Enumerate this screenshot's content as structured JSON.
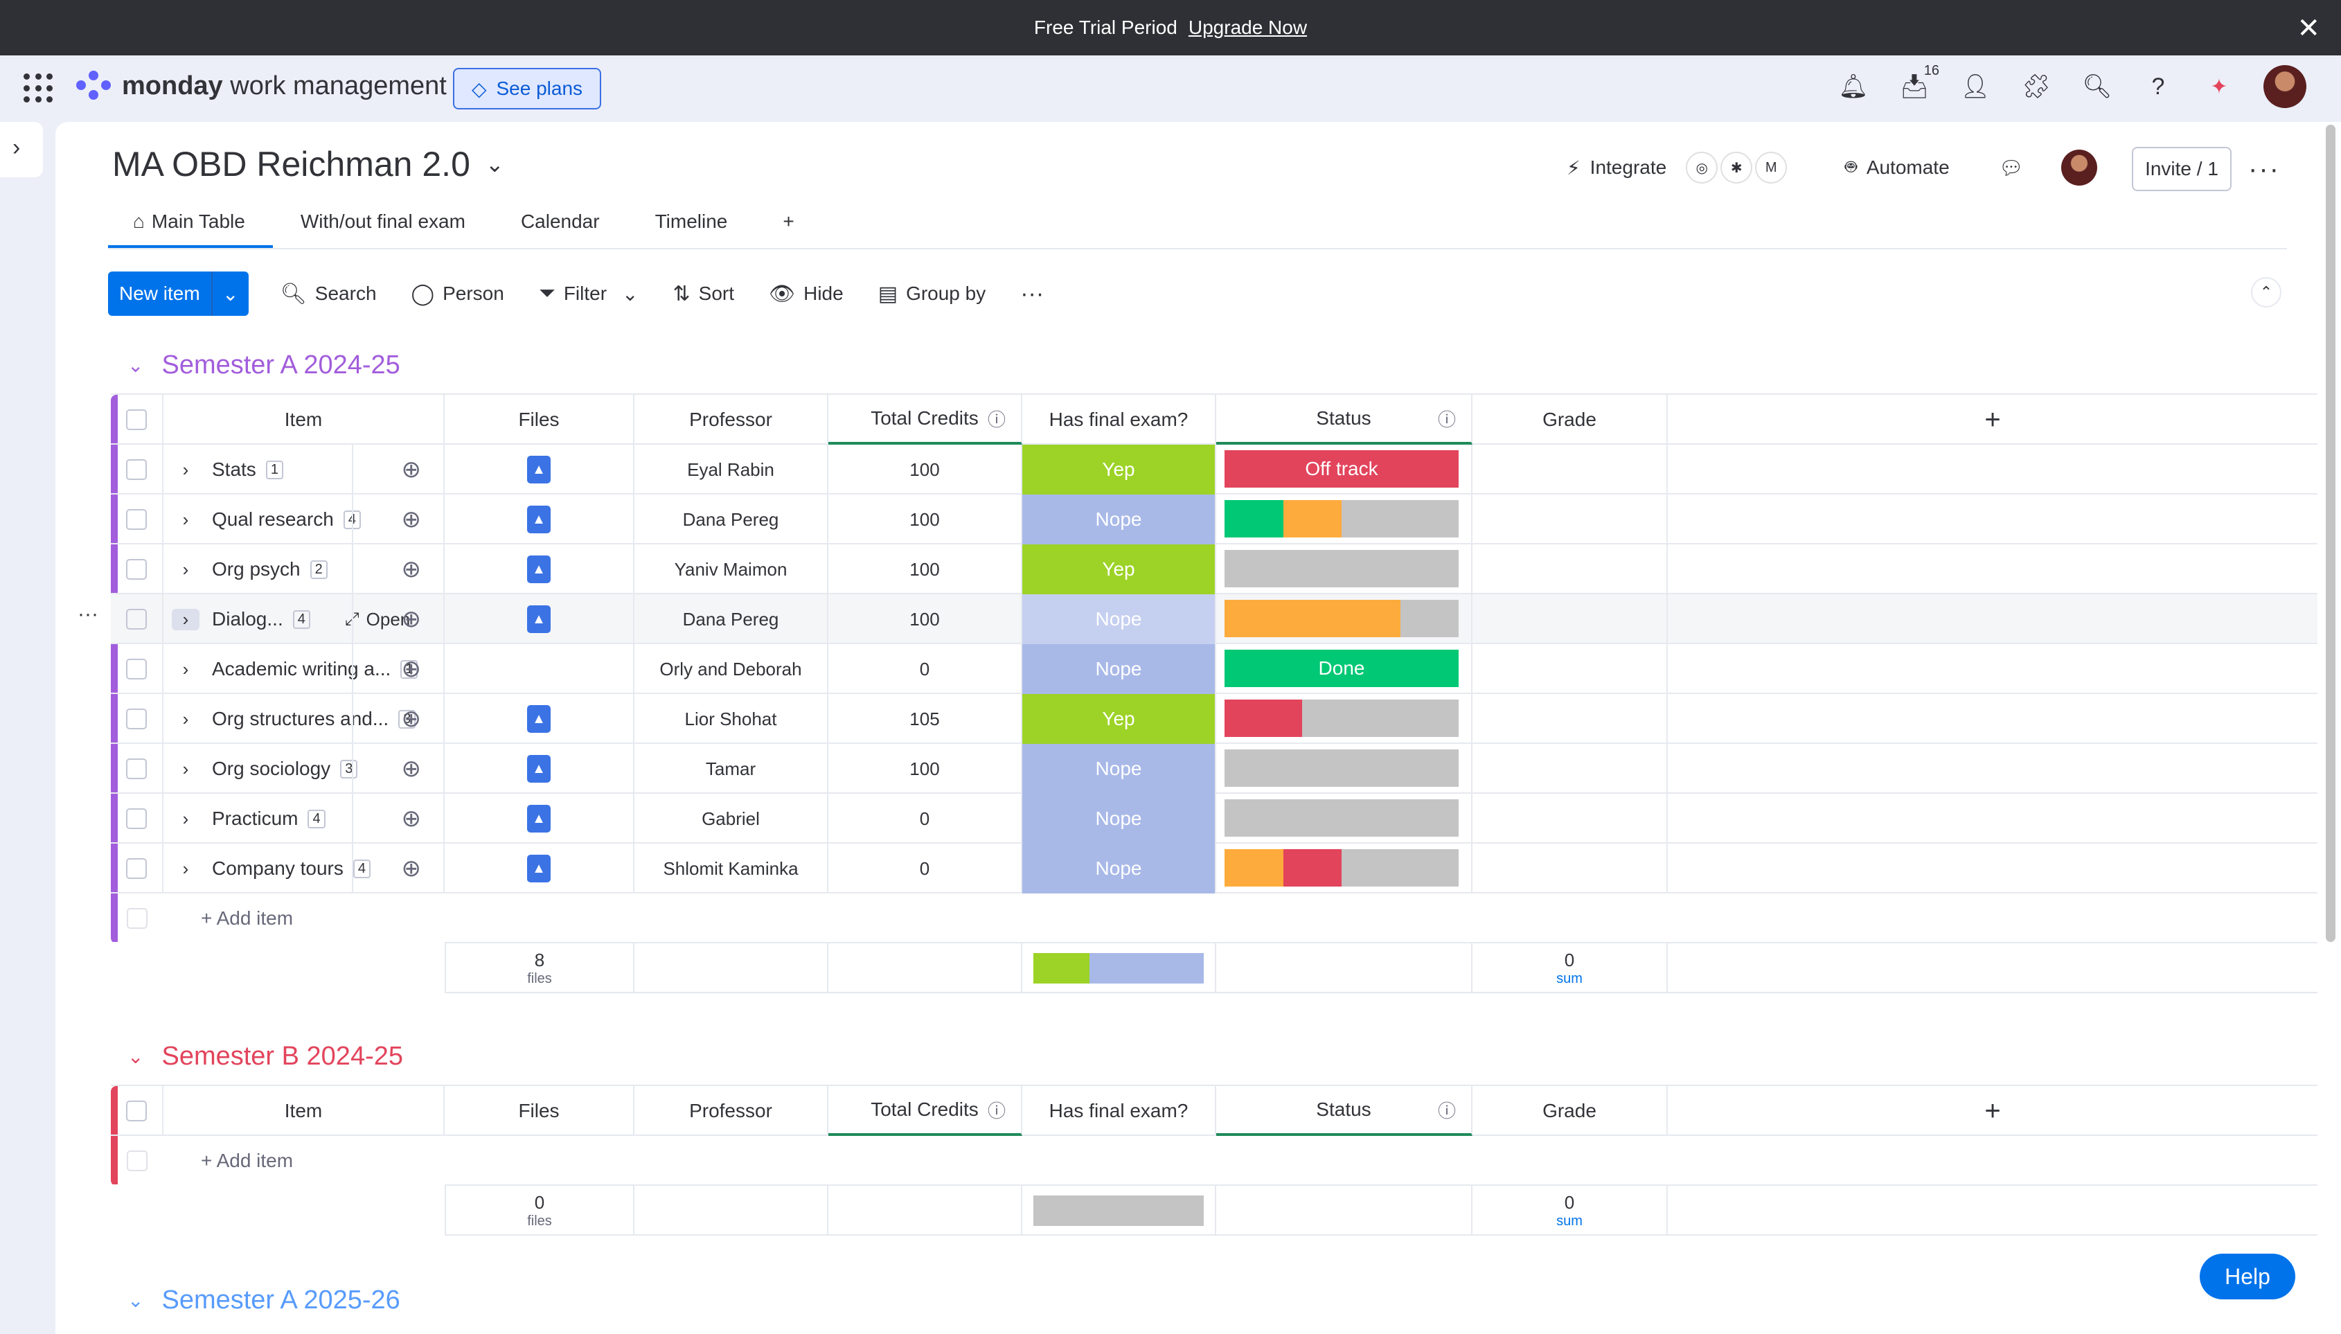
{
  "trial": {
    "text": "Free Trial Period",
    "link": "Upgrade Now"
  },
  "topnav": {
    "brand_bold": "monday",
    "brand_rest": "work management",
    "see_plans": "See plans",
    "inbox_count": "16"
  },
  "board": {
    "title": "MA OBD Reichman 2.0",
    "integrate": "Integrate",
    "automate": "Automate",
    "invite": "Invite / 1",
    "tabs": [
      "Main Table",
      "With/out final exam",
      "Calendar",
      "Timeline",
      "+"
    ]
  },
  "toolbar": {
    "new_item": "New item",
    "search": "Search",
    "person": "Person",
    "filter": "Filter",
    "sort": "Sort",
    "hide": "Hide",
    "group_by": "Group by"
  },
  "columns": [
    "Item",
    "Files",
    "Professor",
    "Total Credits",
    "Has final exam?",
    "Status",
    "Grade"
  ],
  "colors": {
    "yep": "#9cd326",
    "nope": "#a8b9e8",
    "red": "#e2445c",
    "green": "#00c875",
    "orange": "#fdab3d",
    "grey": "#c4c4c4",
    "groupA": "#a25ddc",
    "groupB": "#e2445c",
    "groupC": "#579bfc"
  },
  "groups": [
    {
      "title": "Semester A 2024-25",
      "color": "#a25ddc",
      "rows": [
        {
          "item": "Stats",
          "count": "1",
          "files": true,
          "professor": "Eyal Rabin",
          "credits": "100",
          "exam": "Yep",
          "status_label": "Off track",
          "status": [
            [
              "#e2445c",
              1
            ]
          ]
        },
        {
          "item": "Qual research",
          "count": "4",
          "files": true,
          "professor": "Dana Pereg",
          "credits": "100",
          "exam": "Nope",
          "status_label": "",
          "status": [
            [
              "#00c875",
              0.25
            ],
            [
              "#fdab3d",
              0.25
            ],
            [
              "#c4c4c4",
              0.5
            ]
          ]
        },
        {
          "item": "Org psych",
          "count": "2",
          "files": true,
          "professor": "Yaniv Maimon",
          "credits": "100",
          "exam": "Yep",
          "status_label": "",
          "status": [
            [
              "#c4c4c4",
              1
            ]
          ]
        },
        {
          "item": "Dialog...",
          "count": "4",
          "files": true,
          "professor": "Dana Pereg",
          "credits": "100",
          "exam": "Nope",
          "status_label": "",
          "status": [
            [
              "#fdab3d",
              0.75
            ],
            [
              "#c4c4c4",
              0.25
            ]
          ],
          "hover": true,
          "open": "Open"
        },
        {
          "item": "Academic writing a...",
          "count": "1",
          "files": false,
          "professor": "Orly and Deborah",
          "credits": "0",
          "exam": "Nope",
          "status_label": "Done",
          "status": [
            [
              "#00c875",
              1
            ]
          ]
        },
        {
          "item": "Org structures and...",
          "count": "3",
          "files": true,
          "professor": "Lior Shohat",
          "credits": "105",
          "exam": "Yep",
          "status_label": "",
          "status": [
            [
              "#e2445c",
              0.33
            ],
            [
              "#c4c4c4",
              0.67
            ]
          ]
        },
        {
          "item": "Org sociology",
          "count": "3",
          "files": true,
          "professor": "Tamar",
          "credits": "100",
          "exam": "Nope",
          "status_label": "",
          "status": [
            [
              "#c4c4c4",
              1
            ]
          ]
        },
        {
          "item": "Practicum",
          "count": "4",
          "files": true,
          "professor": "Gabriel",
          "credits": "0",
          "exam": "Nope",
          "status_label": "",
          "status": [
            [
              "#c4c4c4",
              1
            ]
          ]
        },
        {
          "item": "Company tours",
          "count": "4",
          "files": true,
          "professor": "Shlomit Kaminka",
          "credits": "0",
          "exam": "Nope",
          "status_label": "",
          "status": [
            [
              "#fdab3d",
              0.25
            ],
            [
              "#e2445c",
              0.25
            ],
            [
              "#c4c4c4",
              0.5
            ]
          ]
        }
      ],
      "footer": {
        "files_count": "8",
        "files_label": "files",
        "exam_bar": [
          [
            "#9cd326",
            0.33
          ],
          [
            "#a8b9e8",
            0.67
          ]
        ],
        "grade_sum": "0",
        "sum_label": "sum"
      }
    },
    {
      "title": "Semester B 2024-25",
      "color": "#e2445c",
      "rows": [],
      "footer": {
        "files_count": "0",
        "files_label": "files",
        "exam_bar": [
          [
            "#c4c4c4",
            1
          ]
        ],
        "grade_sum": "0",
        "sum_label": "sum"
      }
    },
    {
      "title": "Semester A 2025-26",
      "color": "#579bfc",
      "rows": [],
      "footer": null
    }
  ],
  "add_item": "+ Add item",
  "help": "Help"
}
